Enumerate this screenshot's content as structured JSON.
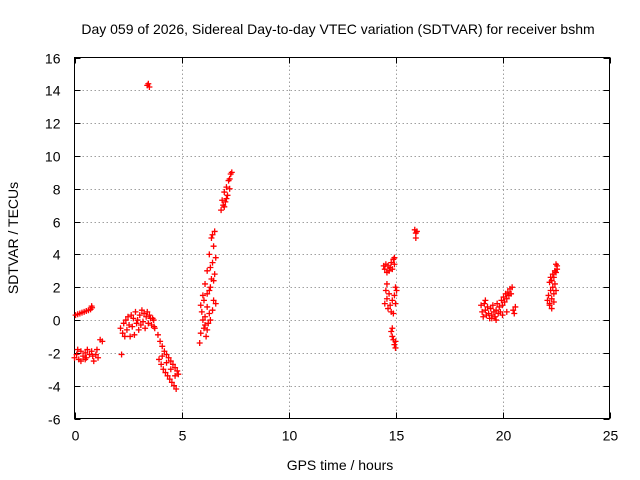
{
  "chart_data": {
    "type": "scatter",
    "title": "Day 059 of 2026, Sidereal Day-to-day VTEC variation (SDTVAR) for receiver bshm",
    "xlabel": "GPS time / hours",
    "ylabel": "SDTVAR / TECUs",
    "xlim": [
      0,
      25
    ],
    "ylim": [
      -6,
      16
    ],
    "xticks": [
      "0",
      "5",
      "10",
      "15",
      "20",
      "25"
    ],
    "yticks": [
      "-6",
      "-4",
      "-2",
      "0",
      "2",
      "4",
      "6",
      "8",
      "10",
      "12",
      "14",
      "16"
    ],
    "xtick_values": [
      0,
      5,
      10,
      15,
      20,
      25
    ],
    "ytick_values": [
      -6,
      -4,
      -2,
      0,
      2,
      4,
      6,
      8,
      10,
      12,
      14,
      16
    ],
    "grid": true,
    "marker": "plus",
    "color": "#ff0000",
    "series": [
      {
        "name": "SDTVAR",
        "points": [
          [
            0.0,
            -2.3
          ],
          [
            0.1,
            -2.1
          ],
          [
            0.15,
            -1.8
          ],
          [
            0.2,
            -2.4
          ],
          [
            0.3,
            -1.9
          ],
          [
            0.4,
            -2.2
          ],
          [
            0.5,
            -2.0
          ],
          [
            0.55,
            -2.3
          ],
          [
            0.6,
            -1.8
          ],
          [
            0.7,
            -2.1
          ],
          [
            0.8,
            -1.9
          ],
          [
            0.85,
            -2.2
          ],
          [
            1.0,
            -2.1
          ],
          [
            1.05,
            -1.8
          ],
          [
            1.1,
            -2.3
          ],
          [
            1.2,
            -1.2
          ],
          [
            1.3,
            -1.3
          ],
          [
            0.3,
            -2.5
          ],
          [
            0.5,
            -2.4
          ],
          [
            0.9,
            -2.5
          ],
          [
            0.05,
            0.3
          ],
          [
            0.15,
            0.35
          ],
          [
            0.25,
            0.4
          ],
          [
            0.35,
            0.45
          ],
          [
            0.45,
            0.5
          ],
          [
            0.55,
            0.55
          ],
          [
            0.65,
            0.6
          ],
          [
            0.75,
            0.65
          ],
          [
            0.8,
            0.85
          ],
          [
            0.82,
            0.75
          ],
          [
            2.2,
            -2.1
          ],
          [
            2.15,
            -0.5
          ],
          [
            2.25,
            -0.8
          ],
          [
            2.3,
            -0.2
          ],
          [
            2.35,
            -1.0
          ],
          [
            2.4,
            0.0
          ],
          [
            2.45,
            -0.6
          ],
          [
            2.5,
            0.2
          ],
          [
            2.55,
            -0.3
          ],
          [
            2.6,
            -1.0
          ],
          [
            2.65,
            0.3
          ],
          [
            2.7,
            -0.4
          ],
          [
            2.75,
            0.1
          ],
          [
            2.8,
            -0.9
          ],
          [
            2.85,
            0.5
          ],
          [
            2.9,
            -0.2
          ],
          [
            2.95,
            0.0
          ],
          [
            3.0,
            -0.6
          ],
          [
            3.05,
            0.3
          ],
          [
            3.1,
            -0.3
          ],
          [
            3.15,
            0.6
          ],
          [
            3.2,
            -0.1
          ],
          [
            3.25,
            0.4
          ],
          [
            3.3,
            -0.5
          ],
          [
            3.35,
            0.2
          ],
          [
            3.4,
            0.5
          ],
          [
            3.45,
            -0.2
          ],
          [
            3.5,
            0.3
          ],
          [
            3.55,
            0.1
          ],
          [
            3.6,
            -0.3
          ],
          [
            3.65,
            0.1
          ],
          [
            3.7,
            0.0
          ],
          [
            3.72,
            -0.4
          ],
          [
            3.75,
            -0.5
          ],
          [
            3.4,
            14.3
          ],
          [
            3.45,
            14.4
          ],
          [
            3.5,
            14.2
          ],
          [
            3.9,
            -0.9
          ],
          [
            3.95,
            -2.4
          ],
          [
            4.0,
            -1.3
          ],
          [
            4.05,
            -2.7
          ],
          [
            4.1,
            -1.6
          ],
          [
            4.15,
            -3.0
          ],
          [
            4.2,
            -1.9
          ],
          [
            4.25,
            -3.2
          ],
          [
            4.3,
            -2.1
          ],
          [
            4.35,
            -3.4
          ],
          [
            4.4,
            -2.3
          ],
          [
            4.45,
            -3.6
          ],
          [
            4.5,
            -2.5
          ],
          [
            4.55,
            -3.8
          ],
          [
            4.6,
            -2.7
          ],
          [
            4.65,
            -4.0
          ],
          [
            4.7,
            -2.9
          ],
          [
            4.75,
            -4.2
          ],
          [
            4.8,
            -3.1
          ],
          [
            4.85,
            -3.3
          ],
          [
            4.1,
            -2.2
          ],
          [
            4.3,
            -2.6
          ],
          [
            4.5,
            -3.0
          ],
          [
            4.7,
            -3.4
          ],
          [
            5.85,
            -1.4
          ],
          [
            5.9,
            -0.8
          ],
          [
            5.95,
            0.5
          ],
          [
            6.0,
            1.5
          ],
          [
            6.05,
            -0.5
          ],
          [
            6.1,
            0.2
          ],
          [
            6.1,
            2.2
          ],
          [
            6.15,
            -1.0
          ],
          [
            6.2,
            0.8
          ],
          [
            6.2,
            3.0
          ],
          [
            6.25,
            -0.2
          ],
          [
            6.3,
            1.8
          ],
          [
            6.3,
            4.0
          ],
          [
            6.35,
            0.0
          ],
          [
            6.4,
            2.5
          ],
          [
            6.4,
            5.0
          ],
          [
            6.45,
            0.6
          ],
          [
            6.45,
            3.5
          ],
          [
            6.5,
            1.2
          ],
          [
            6.5,
            4.5
          ],
          [
            6.55,
            2.8
          ],
          [
            6.55,
            5.4
          ],
          [
            6.6,
            3.8
          ],
          [
            6.6,
            1.0
          ],
          [
            5.9,
            0.9
          ],
          [
            6.05,
            1.2
          ],
          [
            6.2,
            1.6
          ],
          [
            6.35,
            2.0
          ],
          [
            6.5,
            2.4
          ],
          [
            6.1,
            -0.3
          ],
          [
            6.3,
            0.4
          ],
          [
            6.45,
            5.2
          ],
          [
            6.2,
            -0.6
          ],
          [
            6.35,
            3.2
          ],
          [
            6.0,
            0.0
          ],
          [
            6.85,
            6.7
          ],
          [
            6.9,
            7.3
          ],
          [
            6.95,
            7.0
          ],
          [
            7.0,
            7.8
          ],
          [
            7.05,
            7.2
          ],
          [
            7.1,
            8.1
          ],
          [
            7.15,
            7.6
          ],
          [
            7.2,
            8.5
          ],
          [
            7.25,
            8.0
          ],
          [
            7.3,
            8.9
          ],
          [
            7.35,
            9.0
          ],
          [
            7.0,
            6.9
          ],
          [
            7.1,
            7.4
          ],
          [
            7.25,
            8.6
          ],
          [
            14.45,
            3.3
          ],
          [
            14.5,
            3.1
          ],
          [
            14.55,
            3.4
          ],
          [
            14.6,
            2.9
          ],
          [
            14.65,
            3.3
          ],
          [
            14.7,
            3.0
          ],
          [
            14.75,
            3.2
          ],
          [
            14.8,
            3.5
          ],
          [
            14.85,
            3.1
          ],
          [
            14.9,
            3.7
          ],
          [
            14.95,
            3.4
          ],
          [
            14.95,
            3.8
          ],
          [
            14.5,
            1.0
          ],
          [
            14.55,
            1.8
          ],
          [
            14.6,
            1.3
          ],
          [
            14.65,
            0.7
          ],
          [
            14.7,
            1.6
          ],
          [
            14.75,
            0.9
          ],
          [
            14.8,
            0.5
          ],
          [
            14.85,
            1.2
          ],
          [
            14.9,
            0.4
          ],
          [
            14.95,
            1.5
          ],
          [
            15.0,
            1.0
          ],
          [
            15.05,
            1.8
          ],
          [
            15.0,
            2.0
          ],
          [
            14.6,
            2.2
          ],
          [
            14.8,
            -0.7
          ],
          [
            14.85,
            -1.0
          ],
          [
            14.9,
            -1.2
          ],
          [
            14.95,
            -1.5
          ],
          [
            15.0,
            -1.7
          ],
          [
            14.85,
            -0.5
          ],
          [
            15.0,
            -1.3
          ],
          [
            15.9,
            5.5
          ],
          [
            15.95,
            5.3
          ],
          [
            16.0,
            5.4
          ],
          [
            15.95,
            5.0
          ],
          [
            19.0,
            0.9
          ],
          [
            19.05,
            0.5
          ],
          [
            19.1,
            0.2
          ],
          [
            19.15,
            1.0
          ],
          [
            19.2,
            0.6
          ],
          [
            19.25,
            0.3
          ],
          [
            19.3,
            0.8
          ],
          [
            19.35,
            0.4
          ],
          [
            19.4,
            0.1
          ],
          [
            19.45,
            0.7
          ],
          [
            19.5,
            0.3
          ],
          [
            19.55,
            0.9
          ],
          [
            19.6,
            0.5
          ],
          [
            19.65,
            0.2
          ],
          [
            19.7,
            0.6
          ],
          [
            19.75,
            1.0
          ],
          [
            19.8,
            0.4
          ],
          [
            19.85,
            0.8
          ],
          [
            19.9,
            0.5
          ],
          [
            19.95,
            1.2
          ],
          [
            20.0,
            0.9
          ],
          [
            20.05,
            1.4
          ],
          [
            20.1,
            1.1
          ],
          [
            20.15,
            1.6
          ],
          [
            20.2,
            1.3
          ],
          [
            20.25,
            1.7
          ],
          [
            20.3,
            1.5
          ],
          [
            20.35,
            1.9
          ],
          [
            20.4,
            1.6
          ],
          [
            20.45,
            2.0
          ],
          [
            20.5,
            0.6
          ],
          [
            20.55,
            0.4
          ],
          [
            20.6,
            0.8
          ],
          [
            19.2,
            1.2
          ],
          [
            19.5,
            0.1
          ],
          [
            19.7,
            0.0
          ],
          [
            20.0,
            0.3
          ],
          [
            20.2,
            0.5
          ],
          [
            22.1,
            1.2
          ],
          [
            22.15,
            1.5
          ],
          [
            22.2,
            1.0
          ],
          [
            22.25,
            1.8
          ],
          [
            22.3,
            1.3
          ],
          [
            22.35,
            2.0
          ],
          [
            22.4,
            1.6
          ],
          [
            22.45,
            2.2
          ],
          [
            22.5,
            1.8
          ],
          [
            22.2,
            0.9
          ],
          [
            22.3,
            0.7
          ],
          [
            22.4,
            1.1
          ],
          [
            22.2,
            2.3
          ],
          [
            22.25,
            2.6
          ],
          [
            22.3,
            2.4
          ],
          [
            22.35,
            2.8
          ],
          [
            22.4,
            2.6
          ],
          [
            22.45,
            3.0
          ],
          [
            22.5,
            2.9
          ],
          [
            22.55,
            3.3
          ],
          [
            22.5,
            3.4
          ],
          [
            22.55,
            3.1
          ]
        ]
      }
    ]
  }
}
